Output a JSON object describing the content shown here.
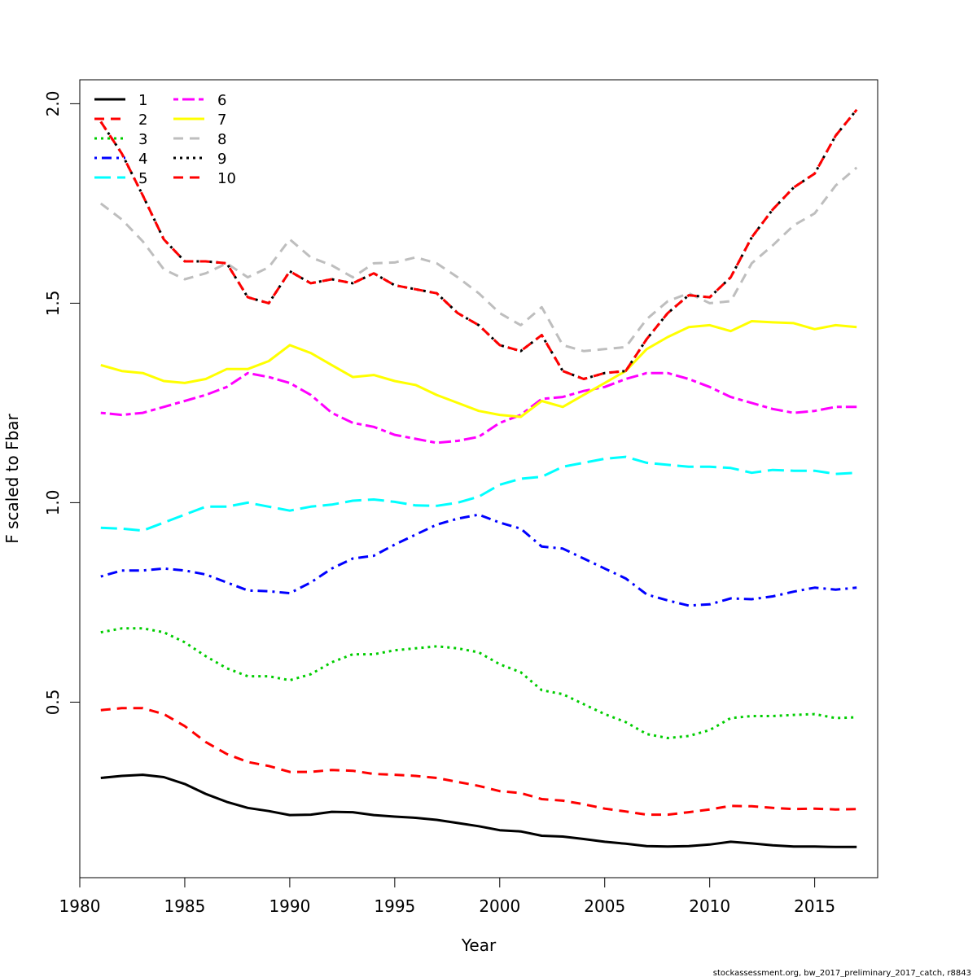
{
  "chart_data": {
    "type": "line",
    "title": "",
    "xlabel": "Year",
    "ylabel": "F scaled to Fbar",
    "footer": "stockassessment.org, bw_2017_preliminary_2017_catch, r8843",
    "xlim": [
      1980,
      2018
    ],
    "ylim": [
      0.06,
      2.06
    ],
    "xticks": [
      1980,
      1985,
      1990,
      1995,
      2000,
      2005,
      2010,
      2015
    ],
    "yticks": [
      0.5,
      1.0,
      1.5,
      2.0
    ],
    "ytick_labels": [
      "0.5",
      "1.0",
      "1.5",
      "2.0"
    ],
    "grid": false,
    "legend_position": "top-left",
    "x": [
      1981,
      1982,
      1983,
      1984,
      1985,
      1986,
      1987,
      1988,
      1989,
      1990,
      1991,
      1992,
      1993,
      1994,
      1995,
      1996,
      1997,
      1998,
      1999,
      2000,
      2001,
      2002,
      2003,
      2004,
      2005,
      2006,
      2007,
      2008,
      2009,
      2010,
      2011,
      2012,
      2013,
      2014,
      2015,
      2016,
      2017
    ],
    "series": [
      {
        "name": "1",
        "color": "#000000",
        "dash": "solid",
        "values": [
          0.31,
          0.315,
          0.318,
          0.312,
          0.295,
          0.27,
          0.25,
          0.235,
          0.227,
          0.217,
          0.218,
          0.225,
          0.224,
          0.217,
          0.213,
          0.21,
          0.205,
          0.197,
          0.189,
          0.179,
          0.176,
          0.165,
          0.163,
          0.157,
          0.15,
          0.145,
          0.139,
          0.138,
          0.139,
          0.143,
          0.15,
          0.146,
          0.141,
          0.138,
          0.138,
          0.137,
          0.137
        ]
      },
      {
        "name": "2",
        "color": "#ff0000",
        "dash": "dashed",
        "values": [
          0.48,
          0.485,
          0.485,
          0.47,
          0.44,
          0.4,
          0.37,
          0.35,
          0.34,
          0.325,
          0.325,
          0.33,
          0.328,
          0.32,
          0.318,
          0.315,
          0.31,
          0.3,
          0.29,
          0.277,
          0.272,
          0.257,
          0.253,
          0.244,
          0.233,
          0.226,
          0.218,
          0.218,
          0.224,
          0.231,
          0.24,
          0.239,
          0.235,
          0.232,
          0.233,
          0.231,
          0.232
        ]
      },
      {
        "name": "3",
        "color": "#00cd00",
        "dash": "dotted",
        "values": [
          0.675,
          0.685,
          0.685,
          0.675,
          0.65,
          0.615,
          0.585,
          0.565,
          0.565,
          0.555,
          0.57,
          0.6,
          0.62,
          0.62,
          0.63,
          0.635,
          0.64,
          0.635,
          0.625,
          0.595,
          0.575,
          0.53,
          0.52,
          0.495,
          0.47,
          0.45,
          0.42,
          0.41,
          0.415,
          0.43,
          0.46,
          0.465,
          0.465,
          0.468,
          0.47,
          0.46,
          0.462
        ]
      },
      {
        "name": "4",
        "color": "#0000ff",
        "dash": "dotdash",
        "values": [
          0.815,
          0.83,
          0.83,
          0.835,
          0.83,
          0.82,
          0.8,
          0.78,
          0.778,
          0.773,
          0.8,
          0.835,
          0.86,
          0.867,
          0.895,
          0.92,
          0.945,
          0.96,
          0.97,
          0.95,
          0.935,
          0.89,
          0.885,
          0.86,
          0.835,
          0.81,
          0.77,
          0.755,
          0.742,
          0.745,
          0.76,
          0.758,
          0.765,
          0.777,
          0.787,
          0.782,
          0.787
        ]
      },
      {
        "name": "5",
        "color": "#00ffff",
        "dash": "longdash",
        "values": [
          0.937,
          0.935,
          0.93,
          0.95,
          0.97,
          0.99,
          0.99,
          1.0,
          0.99,
          0.98,
          0.99,
          0.995,
          1.005,
          1.008,
          1.002,
          0.993,
          0.992,
          1.0,
          1.015,
          1.045,
          1.06,
          1.065,
          1.09,
          1.1,
          1.11,
          1.115,
          1.1,
          1.095,
          1.09,
          1.09,
          1.087,
          1.075,
          1.082,
          1.08,
          1.08,
          1.072,
          1.075
        ]
      },
      {
        "name": "6",
        "color": "#ff00ff",
        "dash": "twodash",
        "values": [
          1.225,
          1.22,
          1.225,
          1.24,
          1.255,
          1.27,
          1.29,
          1.325,
          1.315,
          1.3,
          1.27,
          1.225,
          1.2,
          1.19,
          1.17,
          1.16,
          1.15,
          1.155,
          1.165,
          1.2,
          1.22,
          1.26,
          1.265,
          1.28,
          1.29,
          1.31,
          1.325,
          1.325,
          1.31,
          1.29,
          1.265,
          1.25,
          1.235,
          1.225,
          1.23,
          1.24,
          1.24
        ]
      },
      {
        "name": "7",
        "color": "#ffff00",
        "dash": "solid",
        "values": [
          1.345,
          1.33,
          1.325,
          1.305,
          1.3,
          1.31,
          1.335,
          1.335,
          1.355,
          1.395,
          1.375,
          1.345,
          1.315,
          1.32,
          1.305,
          1.295,
          1.27,
          1.25,
          1.23,
          1.22,
          1.215,
          1.255,
          1.24,
          1.27,
          1.3,
          1.33,
          1.385,
          1.415,
          1.44,
          1.445,
          1.43,
          1.455,
          1.452,
          1.45,
          1.435,
          1.445,
          1.44
        ]
      },
      {
        "name": "8",
        "color": "#bebebe",
        "dash": "dashed",
        "values": [
          1.75,
          1.71,
          1.655,
          1.585,
          1.56,
          1.575,
          1.6,
          1.565,
          1.59,
          1.66,
          1.615,
          1.595,
          1.565,
          1.6,
          1.602,
          1.615,
          1.6,
          1.565,
          1.525,
          1.475,
          1.445,
          1.49,
          1.395,
          1.38,
          1.385,
          1.39,
          1.46,
          1.505,
          1.525,
          1.5,
          1.505,
          1.6,
          1.645,
          1.695,
          1.725,
          1.795,
          1.84
        ]
      },
      {
        "name": "9",
        "color": "#000000",
        "dash": "dotted",
        "values": [
          1.955,
          1.875,
          1.77,
          1.66,
          1.605,
          1.605,
          1.6,
          1.515,
          1.5,
          1.58,
          1.55,
          1.56,
          1.55,
          1.575,
          1.545,
          1.535,
          1.525,
          1.475,
          1.445,
          1.395,
          1.38,
          1.42,
          1.33,
          1.31,
          1.325,
          1.33,
          1.41,
          1.475,
          1.52,
          1.515,
          1.565,
          1.665,
          1.735,
          1.79,
          1.825,
          1.92,
          1.985
        ]
      },
      {
        "name": "10",
        "color": "#ff0000",
        "dash": "dashed",
        "values": [
          1.955,
          1.875,
          1.77,
          1.66,
          1.605,
          1.605,
          1.6,
          1.515,
          1.5,
          1.58,
          1.55,
          1.56,
          1.55,
          1.575,
          1.545,
          1.535,
          1.525,
          1.475,
          1.445,
          1.395,
          1.38,
          1.42,
          1.33,
          1.31,
          1.325,
          1.33,
          1.41,
          1.475,
          1.52,
          1.515,
          1.565,
          1.665,
          1.735,
          1.79,
          1.825,
          1.92,
          1.985
        ]
      }
    ]
  }
}
